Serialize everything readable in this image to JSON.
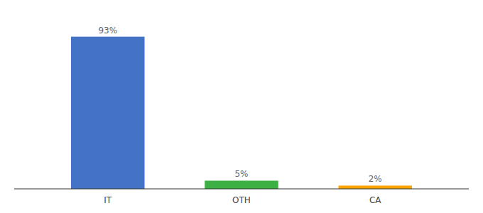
{
  "chart_data": {
    "type": "bar",
    "categories": [
      "IT",
      "OTH",
      "CA"
    ],
    "values": [
      93,
      5,
      2
    ],
    "value_labels": [
      "93%",
      "5%",
      "2%"
    ],
    "colors": [
      "#4472C4",
      "#3CB043",
      "#FFA500"
    ],
    "ylim": [
      0,
      105
    ],
    "data_labels": true,
    "tick_labels": "x",
    "grid": false
  }
}
